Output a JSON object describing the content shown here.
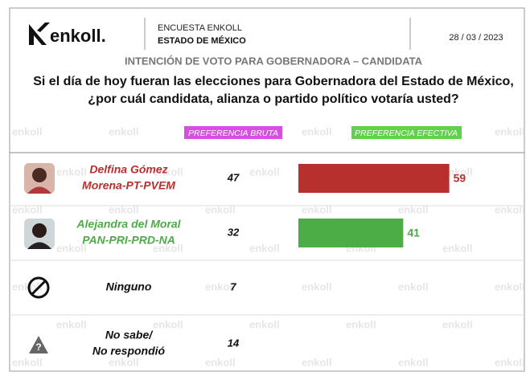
{
  "header": {
    "logo": "enkoll.",
    "survey": "ENCUESTA ENKOLL",
    "state": "ESTADO DE MÉXICO",
    "date": "28 / 03 / 2023"
  },
  "title": "INTENCIÓN DE VOTO PARA GOBERNADORA – CANDIDATA",
  "question": [
    "Si el día de hoy fueran las elecciones para Gobernadora del Estado de México,",
    "¿por cuál candidata, alianza o partido político votaría usted?"
  ],
  "columns": {
    "brute": "PREFERENCIA BRUTA",
    "effective": "PREFERENCIA EFECTIVA"
  },
  "watermark": "enkoll",
  "rows": [
    {
      "name": [
        "Delfina Gómez",
        "Morena-PT-PVEM"
      ],
      "color": "#b8302e",
      "brute": 47,
      "effective": 59
    },
    {
      "name": [
        "Alejandra del Moral",
        "PAN-PRI-PRD-NA"
      ],
      "color": "#4cac45",
      "brute": 32,
      "effective": 41
    },
    {
      "name": [
        "Ninguno"
      ],
      "color": "#111111",
      "brute": 7
    },
    {
      "name": [
        "No sabe/",
        "No respondió"
      ],
      "color": "#111111",
      "brute": 14
    }
  ]
}
